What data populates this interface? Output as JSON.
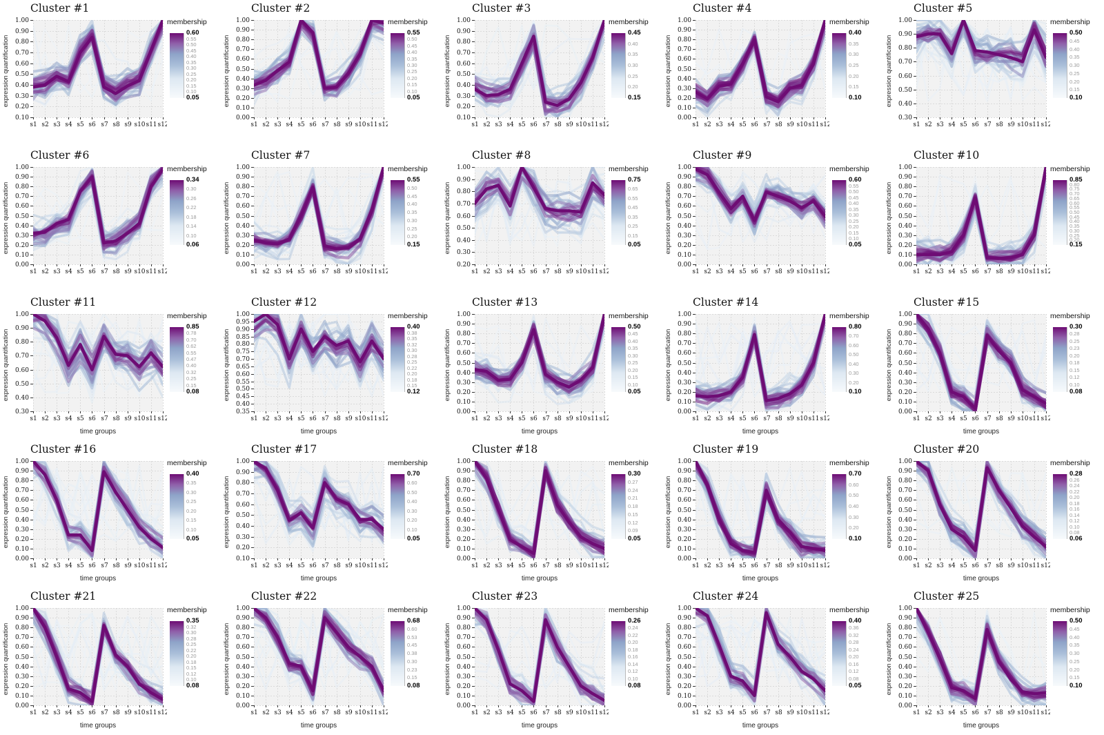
{
  "figure": {
    "ylabel": "expression quantification",
    "xlabel": "time groups",
    "legend_title": "membership",
    "x_categories": [
      "s1",
      "s2",
      "s3",
      "s4",
      "s5",
      "s6",
      "s7",
      "s8",
      "s9",
      "s10",
      "s11",
      "s12"
    ],
    "colors": {
      "mean_line": "#6e0c74",
      "panel_bg": "#f2f2f2",
      "grid_line": "#dadada",
      "tick": "#333333",
      "ramp_stops": [
        [
          0.0,
          "#f7fafc"
        ],
        [
          0.3,
          "#dde8f2"
        ],
        [
          0.5,
          "#aabfd9"
        ],
        [
          0.68,
          "#8ea3c8"
        ],
        [
          0.84,
          "#8f5fa9"
        ],
        [
          1.0,
          "#6e0c74"
        ]
      ]
    }
  },
  "chart_data": [
    {
      "type": "line",
      "title": "Cluster #1",
      "ylim": [
        0.1,
        1.0
      ],
      "ystep": 0.1,
      "show_xlabel": false,
      "mean": [
        0.38,
        0.4,
        0.48,
        0.43,
        0.7,
        0.84,
        0.38,
        0.32,
        0.39,
        0.44,
        0.72,
        1.0
      ],
      "legend_ticks": [
        "0.60",
        "0.55",
        "0.50",
        "0.45",
        "0.40",
        "0.35",
        "0.30",
        "0.25",
        "0.20",
        "0.15",
        "0.10",
        "0.05"
      ]
    },
    {
      "type": "line",
      "title": "Cluster #2",
      "ylim": [
        0.0,
        1.0
      ],
      "ystep": 0.1,
      "show_xlabel": false,
      "mean": [
        0.33,
        0.38,
        0.48,
        0.57,
        1.0,
        0.87,
        0.3,
        0.31,
        0.45,
        0.65,
        1.0,
        0.97
      ],
      "legend_ticks": [
        "0.55",
        "0.50",
        "0.45",
        "0.40",
        "0.35",
        "0.30",
        "0.25",
        "0.20",
        "0.15",
        "0.10",
        "0.05"
      ]
    },
    {
      "type": "line",
      "title": "Cluster #3",
      "ylim": [
        0.1,
        1.0
      ],
      "ystep": 0.1,
      "show_xlabel": false,
      "mean": [
        0.36,
        0.3,
        0.31,
        0.36,
        0.6,
        0.85,
        0.24,
        0.21,
        0.27,
        0.42,
        0.65,
        1.0
      ],
      "legend_ticks": [
        "0.45",
        "0.40",
        "0.35",
        "0.30",
        "0.25",
        "0.20",
        "0.15"
      ]
    },
    {
      "type": "line",
      "title": "Cluster #4",
      "ylim": [
        0.0,
        1.0
      ],
      "ystep": 0.1,
      "show_xlabel": false,
      "mean": [
        0.26,
        0.19,
        0.32,
        0.34,
        0.55,
        0.79,
        0.21,
        0.16,
        0.3,
        0.33,
        0.55,
        1.0
      ],
      "legend_ticks": [
        "0.40",
        "0.35",
        "0.30",
        "0.25",
        "0.20",
        "0.15",
        "0.10"
      ]
    },
    {
      "type": "line",
      "title": "Cluster #5",
      "ylim": [
        0.3,
        1.0
      ],
      "ystep": 0.1,
      "show_xlabel": false,
      "mean": [
        0.88,
        0.9,
        0.9,
        0.76,
        1.0,
        0.78,
        0.77,
        0.75,
        0.73,
        0.7,
        0.93,
        0.73
      ],
      "legend_ticks": [
        "0.50",
        "0.45",
        "0.40",
        "0.35",
        "0.30",
        "0.25",
        "0.20",
        "0.15",
        "0.10"
      ]
    },
    {
      "type": "line",
      "title": "Cluster #6",
      "ylim": [
        0.0,
        1.0
      ],
      "ystep": 0.1,
      "show_xlabel": false,
      "mean": [
        0.32,
        0.33,
        0.42,
        0.46,
        0.75,
        0.9,
        0.22,
        0.24,
        0.32,
        0.42,
        0.8,
        0.98
      ],
      "legend_ticks": [
        "0.34",
        "0.30",
        "0.26",
        "0.22",
        "0.18",
        "0.14",
        "0.10",
        "0.06"
      ]
    },
    {
      "type": "line",
      "title": "Cluster #7",
      "ylim": [
        0.0,
        1.0
      ],
      "ystep": 0.1,
      "show_xlabel": false,
      "mean": [
        0.25,
        0.22,
        0.21,
        0.26,
        0.5,
        0.79,
        0.19,
        0.16,
        0.17,
        0.26,
        0.55,
        1.0
      ],
      "legend_ticks": [
        "0.55",
        "0.50",
        "0.45",
        "0.40",
        "0.35",
        "0.30",
        "0.25",
        "0.20",
        "0.15"
      ]
    },
    {
      "type": "line",
      "title": "Cluster #8",
      "ylim": [
        0.2,
        1.0
      ],
      "ystep": 0.1,
      "show_xlabel": false,
      "mean": [
        0.7,
        0.82,
        0.85,
        0.68,
        1.0,
        0.83,
        0.66,
        0.64,
        0.64,
        0.63,
        0.87,
        0.77
      ],
      "legend_ticks": [
        "0.75",
        "0.65",
        "0.55",
        "0.45",
        "0.35",
        "0.25",
        "0.15",
        "0.05"
      ]
    },
    {
      "type": "line",
      "title": "Cluster #9",
      "ylim": [
        0.0,
        1.0
      ],
      "ystep": 0.1,
      "show_xlabel": false,
      "mean": [
        0.98,
        0.92,
        0.74,
        0.57,
        0.7,
        0.45,
        0.74,
        0.7,
        0.65,
        0.58,
        0.65,
        0.49
      ],
      "legend_ticks": [
        "0.60",
        "0.55",
        "0.50",
        "0.45",
        "0.40",
        "0.35",
        "0.30",
        "0.25",
        "0.20",
        "0.15",
        "0.10",
        "0.05"
      ]
    },
    {
      "type": "line",
      "title": "Cluster #10",
      "ylim": [
        0.0,
        1.0
      ],
      "ystep": 0.1,
      "show_xlabel": false,
      "mean": [
        0.1,
        0.1,
        0.1,
        0.13,
        0.3,
        0.68,
        0.07,
        0.06,
        0.07,
        0.1,
        0.3,
        1.0
      ],
      "legend_ticks": [
        "0.85",
        "0.80",
        "0.75",
        "0.70",
        "0.65",
        "0.60",
        "0.55",
        "0.50",
        "0.45",
        "0.40",
        "0.35",
        "0.30",
        "0.25",
        "0.20",
        "0.15"
      ]
    },
    {
      "type": "line",
      "title": "Cluster #11",
      "ylim": [
        0.3,
        1.0
      ],
      "ystep": 0.1,
      "show_xlabel": true,
      "mean": [
        1.0,
        0.95,
        0.83,
        0.63,
        0.78,
        0.6,
        0.84,
        0.71,
        0.7,
        0.62,
        0.72,
        0.62
      ],
      "legend_ticks": [
        "0.85",
        "0.78",
        "0.70",
        "0.62",
        "0.55",
        "0.47",
        "0.40",
        "0.32",
        "0.25",
        "0.15",
        "0.08"
      ]
    },
    {
      "type": "line",
      "title": "Cluster #12",
      "ylim": [
        0.35,
        1.0
      ],
      "ystep": 0.05,
      "show_xlabel": true,
      "mean": [
        0.95,
        1.0,
        0.93,
        0.7,
        0.9,
        0.75,
        0.85,
        0.79,
        0.82,
        0.68,
        0.82,
        0.7
      ],
      "legend_ticks": [
        "0.40",
        "0.38",
        "0.35",
        "0.32",
        "0.30",
        "0.28",
        "0.25",
        "0.22",
        "0.20",
        "0.18",
        "0.15",
        "0.12"
      ]
    },
    {
      "type": "line",
      "title": "Cluster #13",
      "ylim": [
        0.0,
        1.0
      ],
      "ystep": 0.1,
      "show_xlabel": true,
      "mean": [
        0.43,
        0.41,
        0.32,
        0.33,
        0.5,
        0.84,
        0.38,
        0.3,
        0.25,
        0.32,
        0.45,
        1.0
      ],
      "legend_ticks": [
        "0.50",
        "0.45",
        "0.40",
        "0.35",
        "0.30",
        "0.25",
        "0.20",
        "0.15",
        "0.10",
        "0.05"
      ]
    },
    {
      "type": "line",
      "title": "Cluster #14",
      "ylim": [
        0.0,
        1.0
      ],
      "ystep": 0.1,
      "show_xlabel": true,
      "mean": [
        0.16,
        0.15,
        0.16,
        0.2,
        0.35,
        0.79,
        0.11,
        0.13,
        0.18,
        0.27,
        0.5,
        1.0
      ],
      "legend_ticks": [
        "0.80",
        "0.70",
        "0.60",
        "0.50",
        "0.40",
        "0.30",
        "0.20",
        "0.10"
      ]
    },
    {
      "type": "line",
      "title": "Cluster #15",
      "ylim": [
        0.0,
        1.0
      ],
      "ystep": 0.1,
      "show_xlabel": true,
      "mean": [
        1.0,
        0.85,
        0.6,
        0.2,
        0.15,
        0.03,
        0.78,
        0.62,
        0.5,
        0.22,
        0.15,
        0.08
      ],
      "legend_ticks": [
        "0.30",
        "0.28",
        "0.25",
        "0.23",
        "0.20",
        "0.18",
        "0.15",
        "0.12",
        "0.10",
        "0.08"
      ]
    },
    {
      "type": "line",
      "title": "Cluster #16",
      "ylim": [
        0.0,
        1.0
      ],
      "ystep": 0.1,
      "show_xlabel": true,
      "mean": [
        1.0,
        0.86,
        0.6,
        0.24,
        0.24,
        0.08,
        0.89,
        0.68,
        0.5,
        0.32,
        0.2,
        0.11
      ],
      "legend_ticks": [
        "0.40",
        "0.35",
        "0.30",
        "0.25",
        "0.20",
        "0.15",
        "0.10",
        "0.05"
      ]
    },
    {
      "type": "line",
      "title": "Cluster #17",
      "ylim": [
        0.1,
        1.0
      ],
      "ystep": 0.1,
      "show_xlabel": true,
      "mean": [
        1.0,
        0.93,
        0.73,
        0.45,
        0.52,
        0.38,
        0.8,
        0.65,
        0.6,
        0.46,
        0.46,
        0.37
      ],
      "legend_ticks": [
        "0.70",
        "0.60",
        "0.50",
        "0.40",
        "0.30",
        "0.20",
        "0.10",
        "0.05"
      ]
    },
    {
      "type": "line",
      "title": "Cluster #18",
      "ylim": [
        0.0,
        1.0
      ],
      "ystep": 0.1,
      "show_xlabel": true,
      "mean": [
        1.0,
        0.82,
        0.5,
        0.19,
        0.12,
        0.05,
        0.9,
        0.55,
        0.37,
        0.22,
        0.15,
        0.1
      ],
      "legend_ticks": [
        "0.30",
        "0.27",
        "0.24",
        "0.21",
        "0.18",
        "0.15",
        "0.12",
        "0.09",
        "0.05"
      ]
    },
    {
      "type": "line",
      "title": "Cluster #19",
      "ylim": [
        0.0,
        1.0
      ],
      "ystep": 0.1,
      "show_xlabel": true,
      "mean": [
        1.0,
        0.75,
        0.4,
        0.15,
        0.08,
        0.06,
        0.7,
        0.4,
        0.27,
        0.12,
        0.1,
        0.08
      ],
      "legend_ticks": [
        "0.70",
        "0.60",
        "0.50",
        "0.40",
        "0.30",
        "0.20",
        "0.10"
      ]
    },
    {
      "type": "line",
      "title": "Cluster #20",
      "ylim": [
        0.0,
        1.0
      ],
      "ystep": 0.1,
      "show_xlabel": true,
      "mean": [
        1.0,
        0.9,
        0.55,
        0.3,
        0.22,
        0.08,
        0.93,
        0.7,
        0.52,
        0.33,
        0.22,
        0.12
      ],
      "legend_ticks": [
        "0.28",
        "0.26",
        "0.24",
        "0.22",
        "0.20",
        "0.18",
        "0.16",
        "0.14",
        "0.12",
        "0.10",
        "0.08",
        "0.06"
      ]
    },
    {
      "type": "line",
      "title": "Cluster #21",
      "ylim": [
        0.0,
        1.0
      ],
      "ystep": 0.1,
      "show_xlabel": true,
      "mean": [
        1.0,
        0.8,
        0.5,
        0.17,
        0.13,
        0.04,
        0.82,
        0.52,
        0.4,
        0.22,
        0.13,
        0.06
      ],
      "legend_ticks": [
        "0.35",
        "0.32",
        "0.30",
        "0.28",
        "0.25",
        "0.22",
        "0.20",
        "0.18",
        "0.15",
        "0.12",
        "0.10",
        "0.08"
      ]
    },
    {
      "type": "line",
      "title": "Cluster #22",
      "ylim": [
        0.0,
        1.0
      ],
      "ystep": 0.1,
      "show_xlabel": true,
      "mean": [
        1.0,
        0.9,
        0.7,
        0.43,
        0.4,
        0.15,
        0.9,
        0.75,
        0.6,
        0.5,
        0.4,
        0.15
      ],
      "legend_ticks": [
        "0.68",
        "0.60",
        "0.53",
        "0.45",
        "0.38",
        "0.30",
        "0.23",
        "0.15",
        "0.08"
      ]
    },
    {
      "type": "line",
      "title": "Cluster #23",
      "ylim": [
        0.0,
        1.0
      ],
      "ystep": 0.1,
      "show_xlabel": true,
      "mean": [
        1.0,
        0.88,
        0.57,
        0.22,
        0.15,
        0.04,
        0.88,
        0.6,
        0.4,
        0.2,
        0.12,
        0.05
      ],
      "legend_ticks": [
        "0.26",
        "0.24",
        "0.22",
        "0.20",
        "0.18",
        "0.16",
        "0.14",
        "0.12",
        "0.10",
        "0.08"
      ]
    },
    {
      "type": "line",
      "title": "Cluster #24",
      "ylim": [
        0.0,
        1.0
      ],
      "ystep": 0.1,
      "show_xlabel": true,
      "mean": [
        1.0,
        0.92,
        0.62,
        0.3,
        0.25,
        0.1,
        0.95,
        0.63,
        0.5,
        0.35,
        0.27,
        0.15
      ],
      "legend_ticks": [
        "0.40",
        "0.36",
        "0.32",
        "0.28",
        "0.24",
        "0.20",
        "0.16",
        "0.12",
        "0.08",
        "0.05"
      ]
    },
    {
      "type": "line",
      "title": "Cluster #25",
      "ylim": [
        0.0,
        1.0
      ],
      "ystep": 0.1,
      "show_xlabel": true,
      "mean": [
        1.0,
        0.75,
        0.48,
        0.18,
        0.15,
        0.07,
        0.78,
        0.45,
        0.27,
        0.14,
        0.12,
        0.13
      ],
      "legend_ticks": [
        "0.50",
        "0.45",
        "0.40",
        "0.35",
        "0.30",
        "0.25",
        "0.20",
        "0.15",
        "0.10"
      ]
    }
  ]
}
